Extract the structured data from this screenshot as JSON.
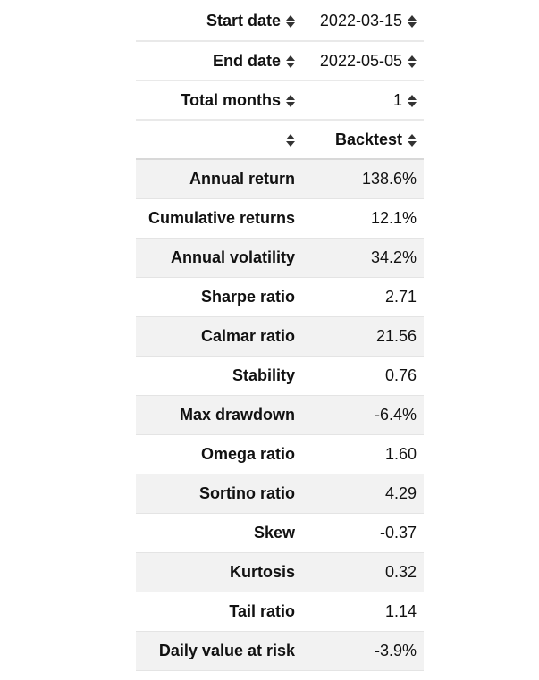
{
  "header": {
    "start_date": {
      "label": "Start date",
      "value": "2022-03-15"
    },
    "end_date": {
      "label": "End date",
      "value": "2022-05-05"
    },
    "total_months": {
      "label": "Total months",
      "value": "1"
    },
    "columns": {
      "index": "",
      "backtest": "Backtest"
    }
  },
  "rows": [
    {
      "label": "Annual return",
      "value": "138.6%"
    },
    {
      "label": "Cumulative returns",
      "value": "12.1%"
    },
    {
      "label": "Annual volatility",
      "value": "34.2%"
    },
    {
      "label": "Sharpe ratio",
      "value": "2.71"
    },
    {
      "label": "Calmar ratio",
      "value": "21.56"
    },
    {
      "label": "Stability",
      "value": "0.76"
    },
    {
      "label": "Max drawdown",
      "value": "-6.4%"
    },
    {
      "label": "Omega ratio",
      "value": "1.60"
    },
    {
      "label": "Sortino ratio",
      "value": "4.29"
    },
    {
      "label": "Skew",
      "value": "-0.37"
    },
    {
      "label": "Kurtosis",
      "value": "0.32"
    },
    {
      "label": "Tail ratio",
      "value": "1.14"
    },
    {
      "label": "Daily value at risk",
      "value": "-3.9%"
    }
  ]
}
